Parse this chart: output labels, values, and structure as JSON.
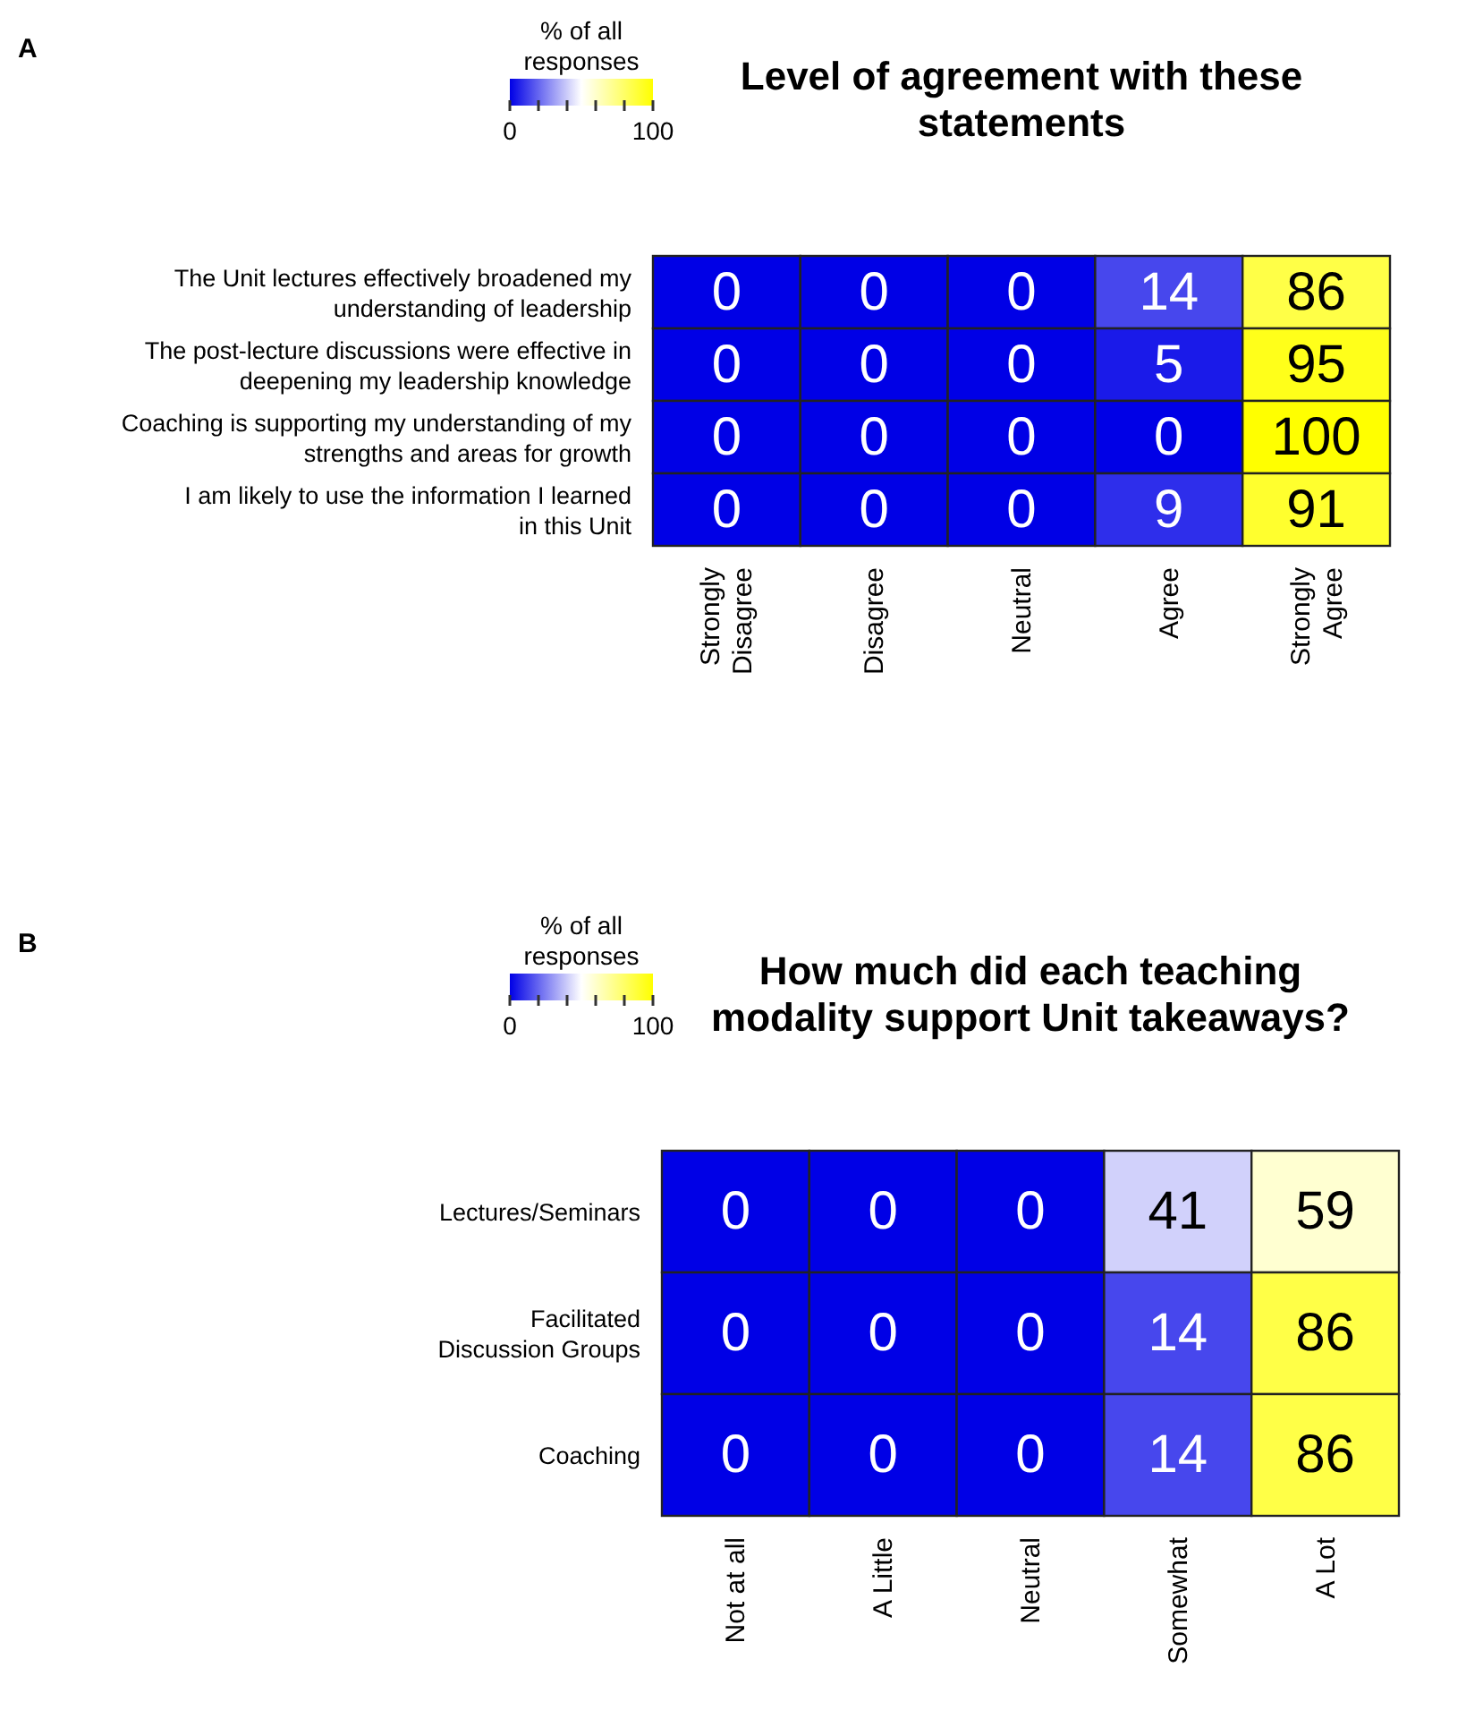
{
  "chart_data": [
    {
      "type": "heatmap",
      "title": "Level of agreement with these statements",
      "annotations": [
        "A"
      ],
      "clabel": "% of all responses",
      "clim": [
        0,
        100
      ],
      "cticks": [
        {
          "value": 0,
          "label": "0"
        },
        {
          "value": 20,
          "label": null
        },
        {
          "value": 40,
          "label": null
        },
        {
          "value": 60,
          "label": null
        },
        {
          "value": 80,
          "label": null
        },
        100
      ],
      "data_labels": true,
      "categories": [
        "Strongly Disagree",
        "Disagree",
        "Neutral",
        "Agree",
        "Strongly Agree"
      ],
      "y_categories": [
        "The Unit lectures effectively broadened my understanding of leadership",
        "The post-lecture discussions were effective in deepening my leadership knowledge",
        "Coaching is supporting my understanding of my strengths and areas for growth",
        "I am likely to use the information I learned in this Unit"
      ],
      "cells": [
        [
          0,
          0,
          0,
          14,
          86
        ],
        [
          0,
          0,
          0,
          5,
          95
        ],
        [
          0,
          0,
          0,
          0,
          100
        ],
        [
          0,
          0,
          0,
          9,
          91
        ]
      ]
    },
    {
      "type": "heatmap",
      "title": "How much did each teaching modality support Unit takeaways?",
      "annotations": [
        "B"
      ],
      "clabel": "% of all responses",
      "clim": [
        0,
        100
      ],
      "cticks": [
        {
          "value": 0,
          "label": "0"
        },
        {
          "value": 20,
          "label": null
        },
        {
          "value": 40,
          "label": null
        },
        {
          "value": 60,
          "label": null
        },
        {
          "value": 80,
          "label": null
        },
        100
      ],
      "data_labels": true,
      "categories": [
        "Not at all",
        "A Little",
        "Neutral",
        "Somewhat",
        "A Lot"
      ],
      "y_categories": [
        "Lectures/Seminars",
        "Facilitated Discussion Groups",
        "Coaching"
      ],
      "cells": [
        [
          0,
          0,
          0,
          41,
          59
        ],
        [
          0,
          0,
          0,
          14,
          86
        ],
        [
          0,
          0,
          0,
          14,
          86
        ]
      ]
    }
  ]
}
